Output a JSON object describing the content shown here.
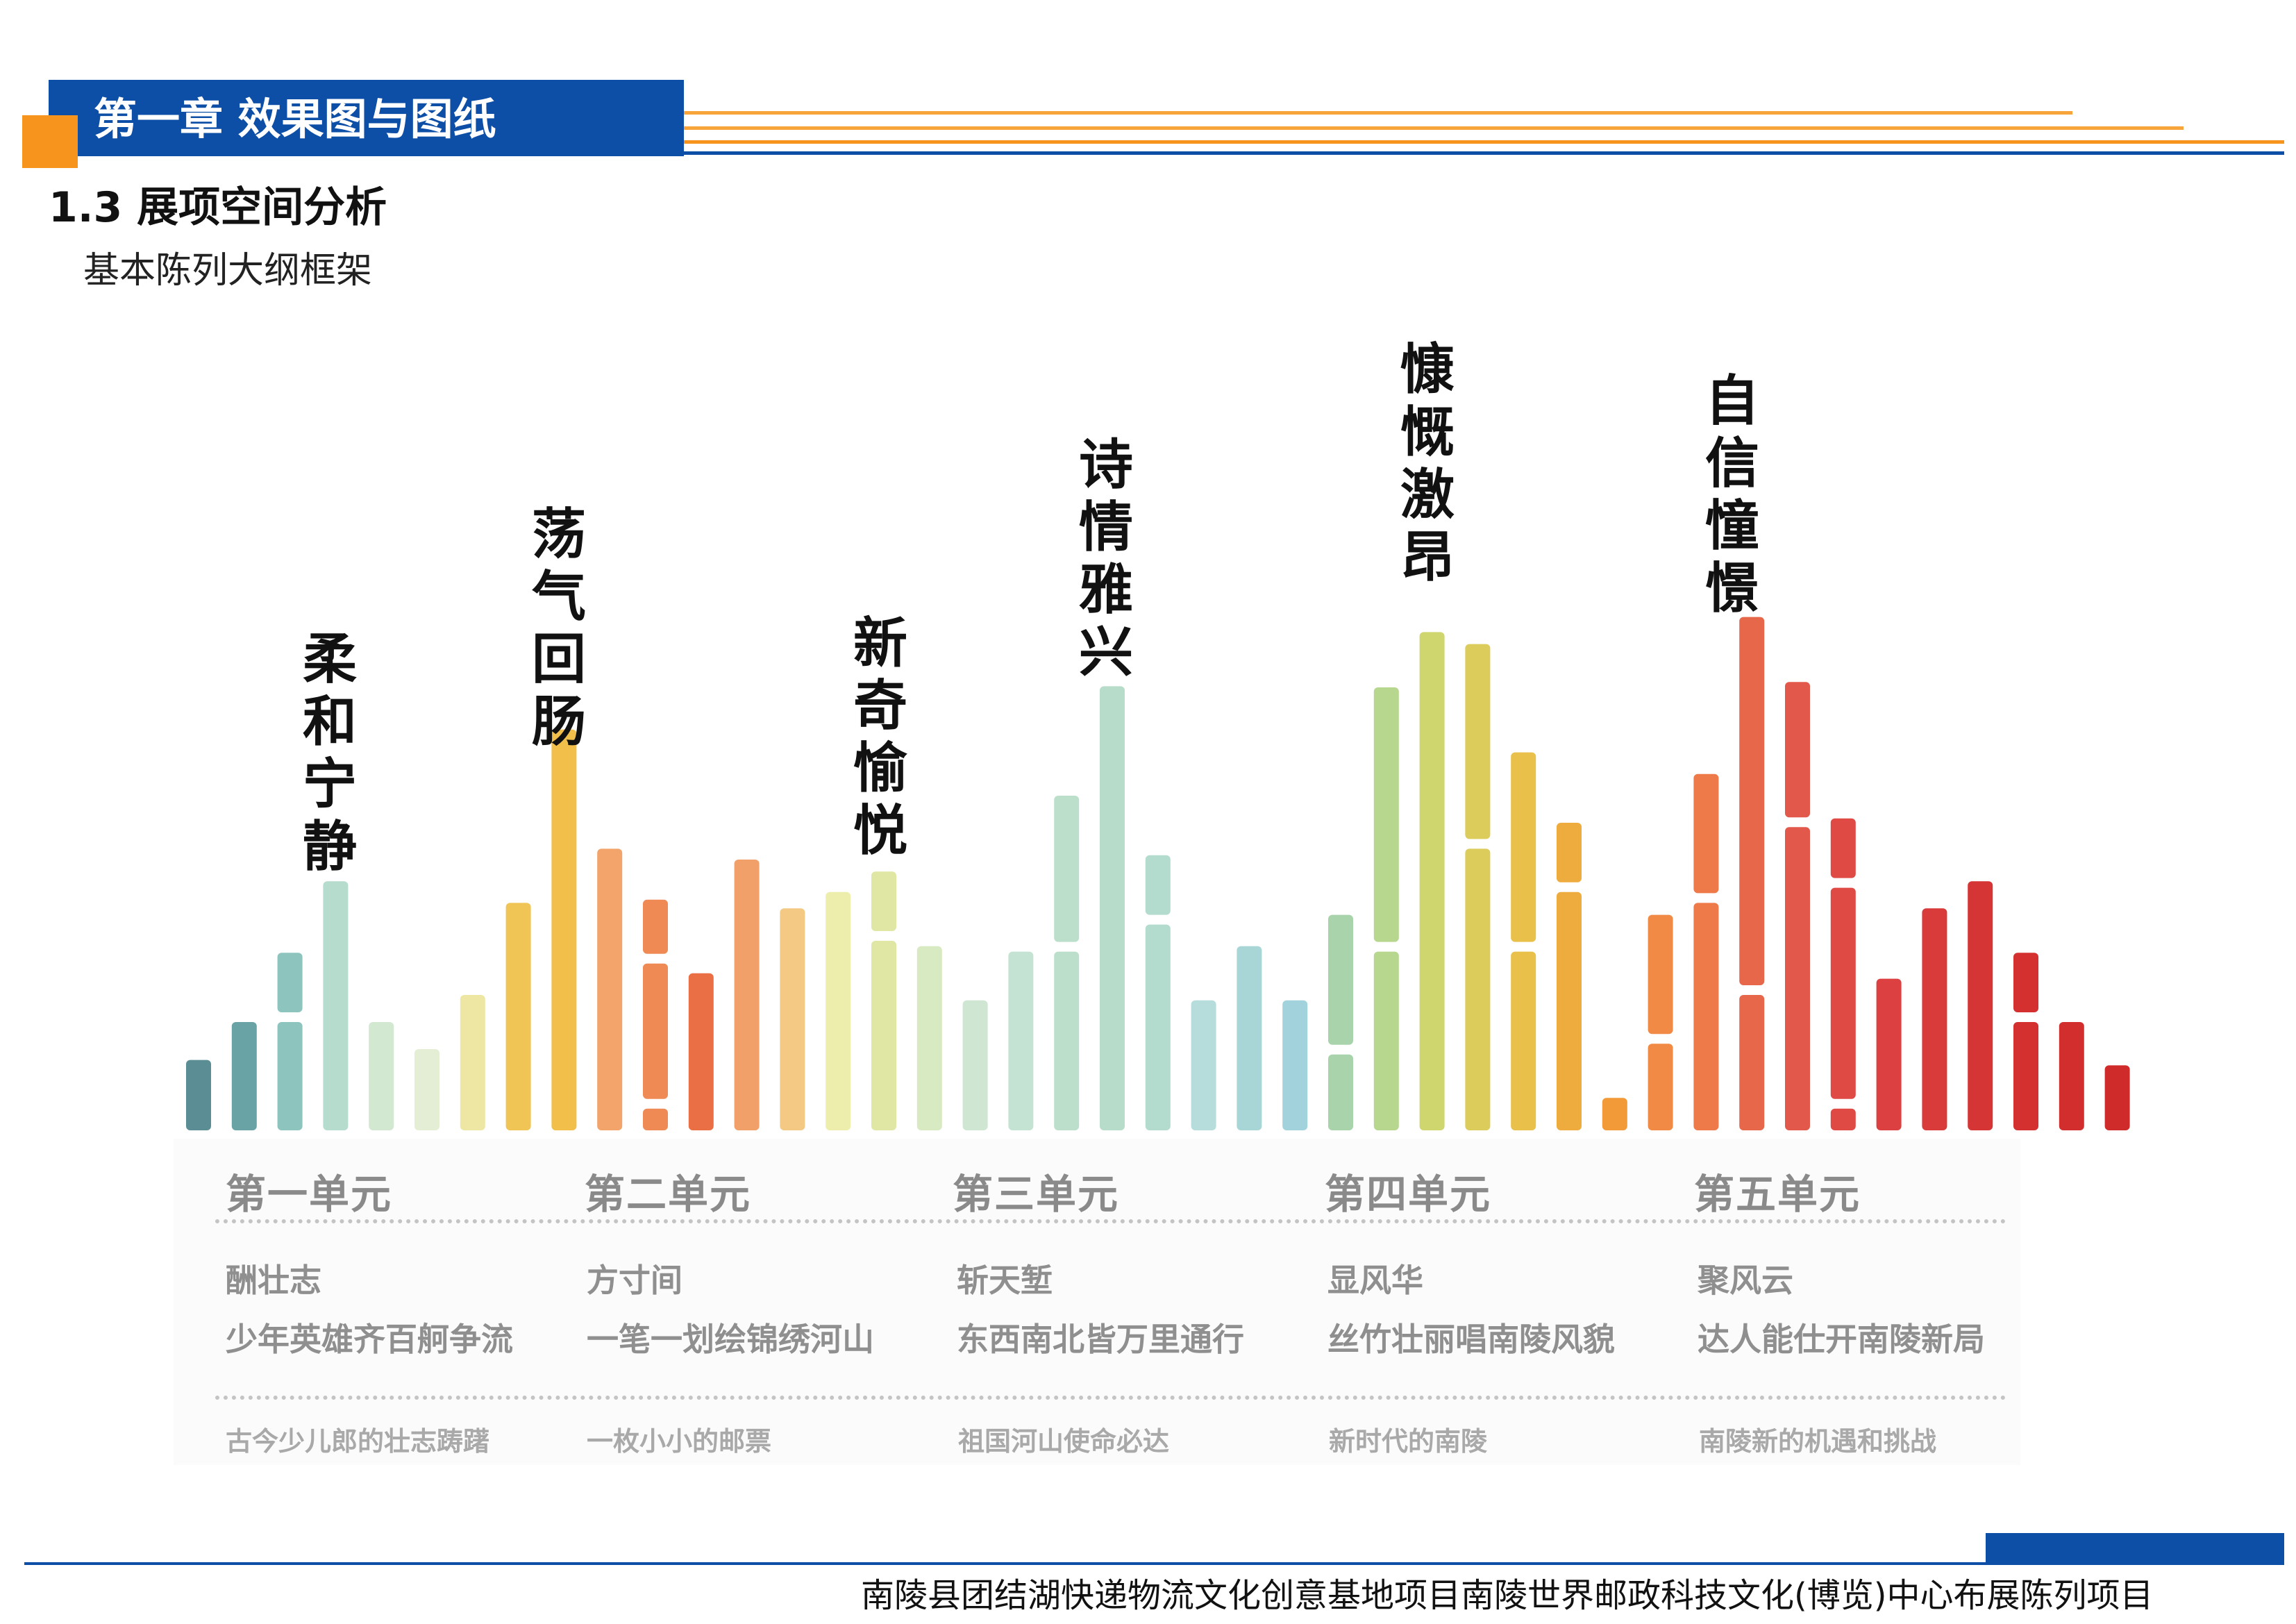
{
  "header": {
    "chapter_title": "第一章 效果图与图纸",
    "section_title": "1.3 展项空间分析",
    "subtitle": "基本陈列大纲框架"
  },
  "colors": {
    "brand_blue": "#0d4ea6",
    "accent_orange": "#f7941d"
  },
  "chart_data": {
    "type": "bar",
    "title": "",
    "phrases": [
      "柔和宁静",
      "荡气回肠",
      "新奇愉悦",
      "诗情雅兴",
      "慷慨激昂",
      "自信憧憬"
    ],
    "bars": [
      {
        "values": [
          0.13
        ],
        "color": "#5b8e94"
      },
      {
        "values": [
          0.2
        ],
        "color": "#6aa3a6"
      },
      {
        "values": [
          0.2,
          0.11
        ],
        "color": "#8ec4be"
      },
      {
        "values": [
          0.46
        ],
        "color": "#b6dccd"
      },
      {
        "values": [
          0.2
        ],
        "color": "#d3e8d0"
      },
      {
        "values": [
          0.15
        ],
        "color": "#e4eed4"
      },
      {
        "values": [
          0.25
        ],
        "color": "#eee7a4"
      },
      {
        "values": [
          0.42
        ],
        "color": "#f0c455"
      },
      {
        "values": [
          0.74
        ],
        "color": "#f2c04a"
      },
      {
        "values": [
          0.52
        ],
        "color": "#f2a46a"
      },
      {
        "values": [
          0.04,
          0.25,
          0.1
        ],
        "color": "#ef8a55"
      },
      {
        "values": [
          0.29
        ],
        "color": "#ea6f45"
      },
      {
        "values": [
          0.5
        ],
        "color": "#f2a06a"
      },
      {
        "values": [
          0.41
        ],
        "color": "#f3c983"
      },
      {
        "values": [
          0.44
        ],
        "color": "#eeeeac"
      },
      {
        "values": [
          0.35,
          0.11
        ],
        "color": "#e0e6a4"
      },
      {
        "values": [
          0.34
        ],
        "color": "#d8eac2"
      },
      {
        "values": [
          0.24
        ],
        "color": "#cfe6d3"
      },
      {
        "values": [
          0.33
        ],
        "color": "#c4e3d2"
      },
      {
        "values": [
          0.33,
          0.27
        ],
        "color": "#bcdfcc"
      },
      {
        "values": [
          0.82
        ],
        "color": "#b7dcca"
      },
      {
        "values": [
          0.38,
          0.11
        ],
        "color": "#b3dbce"
      },
      {
        "values": [
          0.24
        ],
        "color": "#b6dcdc"
      },
      {
        "values": [
          0.34
        ],
        "color": "#a8d6d6"
      },
      {
        "values": [
          0.24
        ],
        "color": "#a2d3dc"
      },
      {
        "values": [
          0.14,
          0.24
        ],
        "color": "#a8d3ab"
      },
      {
        "values": [
          0.33,
          0.47
        ],
        "color": "#b7d68e"
      },
      {
        "values": [
          0.92
        ],
        "color": "#cfd66e"
      },
      {
        "values": [
          0.52,
          0.36
        ],
        "color": "#dccc5b"
      },
      {
        "values": [
          0.33,
          0.35
        ],
        "color": "#e8c04a"
      },
      {
        "values": [
          0.44,
          0.11
        ],
        "color": "#eeac3e"
      },
      {
        "values": [
          0.06
        ],
        "color": "#f29a38"
      },
      {
        "values": [
          0.16,
          0.22
        ],
        "color": "#f08a45"
      },
      {
        "values": [
          0.42,
          0.22
        ],
        "color": "#ee7a4a"
      },
      {
        "values": [
          0.25,
          0.68
        ],
        "color": "#e6674a"
      },
      {
        "values": [
          0.56,
          0.25
        ],
        "color": "#e2584a"
      },
      {
        "values": [
          0.04,
          0.39,
          0.11
        ],
        "color": "#df4a45"
      },
      {
        "values": [
          0.28
        ],
        "color": "#dc4040"
      },
      {
        "values": [
          0.41
        ],
        "color": "#d93a3a"
      },
      {
        "values": [
          0.46
        ],
        "color": "#d63535"
      },
      {
        "values": [
          0.2,
          0.11
        ],
        "color": "#d43030"
      },
      {
        "values": [
          0.2
        ],
        "color": "#d22e2e"
      },
      {
        "values": [
          0.12
        ],
        "color": "#d02b2b"
      }
    ]
  },
  "units": [
    {
      "name": "第一单元",
      "theme": "酬壮志",
      "motto": "少年英雄齐百舸争流",
      "note": "古今少儿郎的壮志踌躇"
    },
    {
      "name": "第二单元",
      "theme": "方寸间",
      "motto": "一笔一划绘锦绣河山",
      "note": "一枚小小的邮票"
    },
    {
      "name": "第三单元",
      "theme": "斩天堑",
      "motto": "东西南北皆万里通行",
      "note": "祖国河山使命必达"
    },
    {
      "name": "第四单元",
      "theme": "显风华",
      "motto": "丝竹壮丽唱南陵风貌",
      "note": "新时代的南陵"
    },
    {
      "name": "第五单元",
      "theme": "聚风云",
      "motto": "达人能仕开南陵新局",
      "note": "南陵新的机遇和挑战"
    }
  ],
  "footer": {
    "text": "南陵县团结湖快递物流文化创意基地项目南陵世界邮政科技文化(博览)中心布展陈列项目"
  }
}
